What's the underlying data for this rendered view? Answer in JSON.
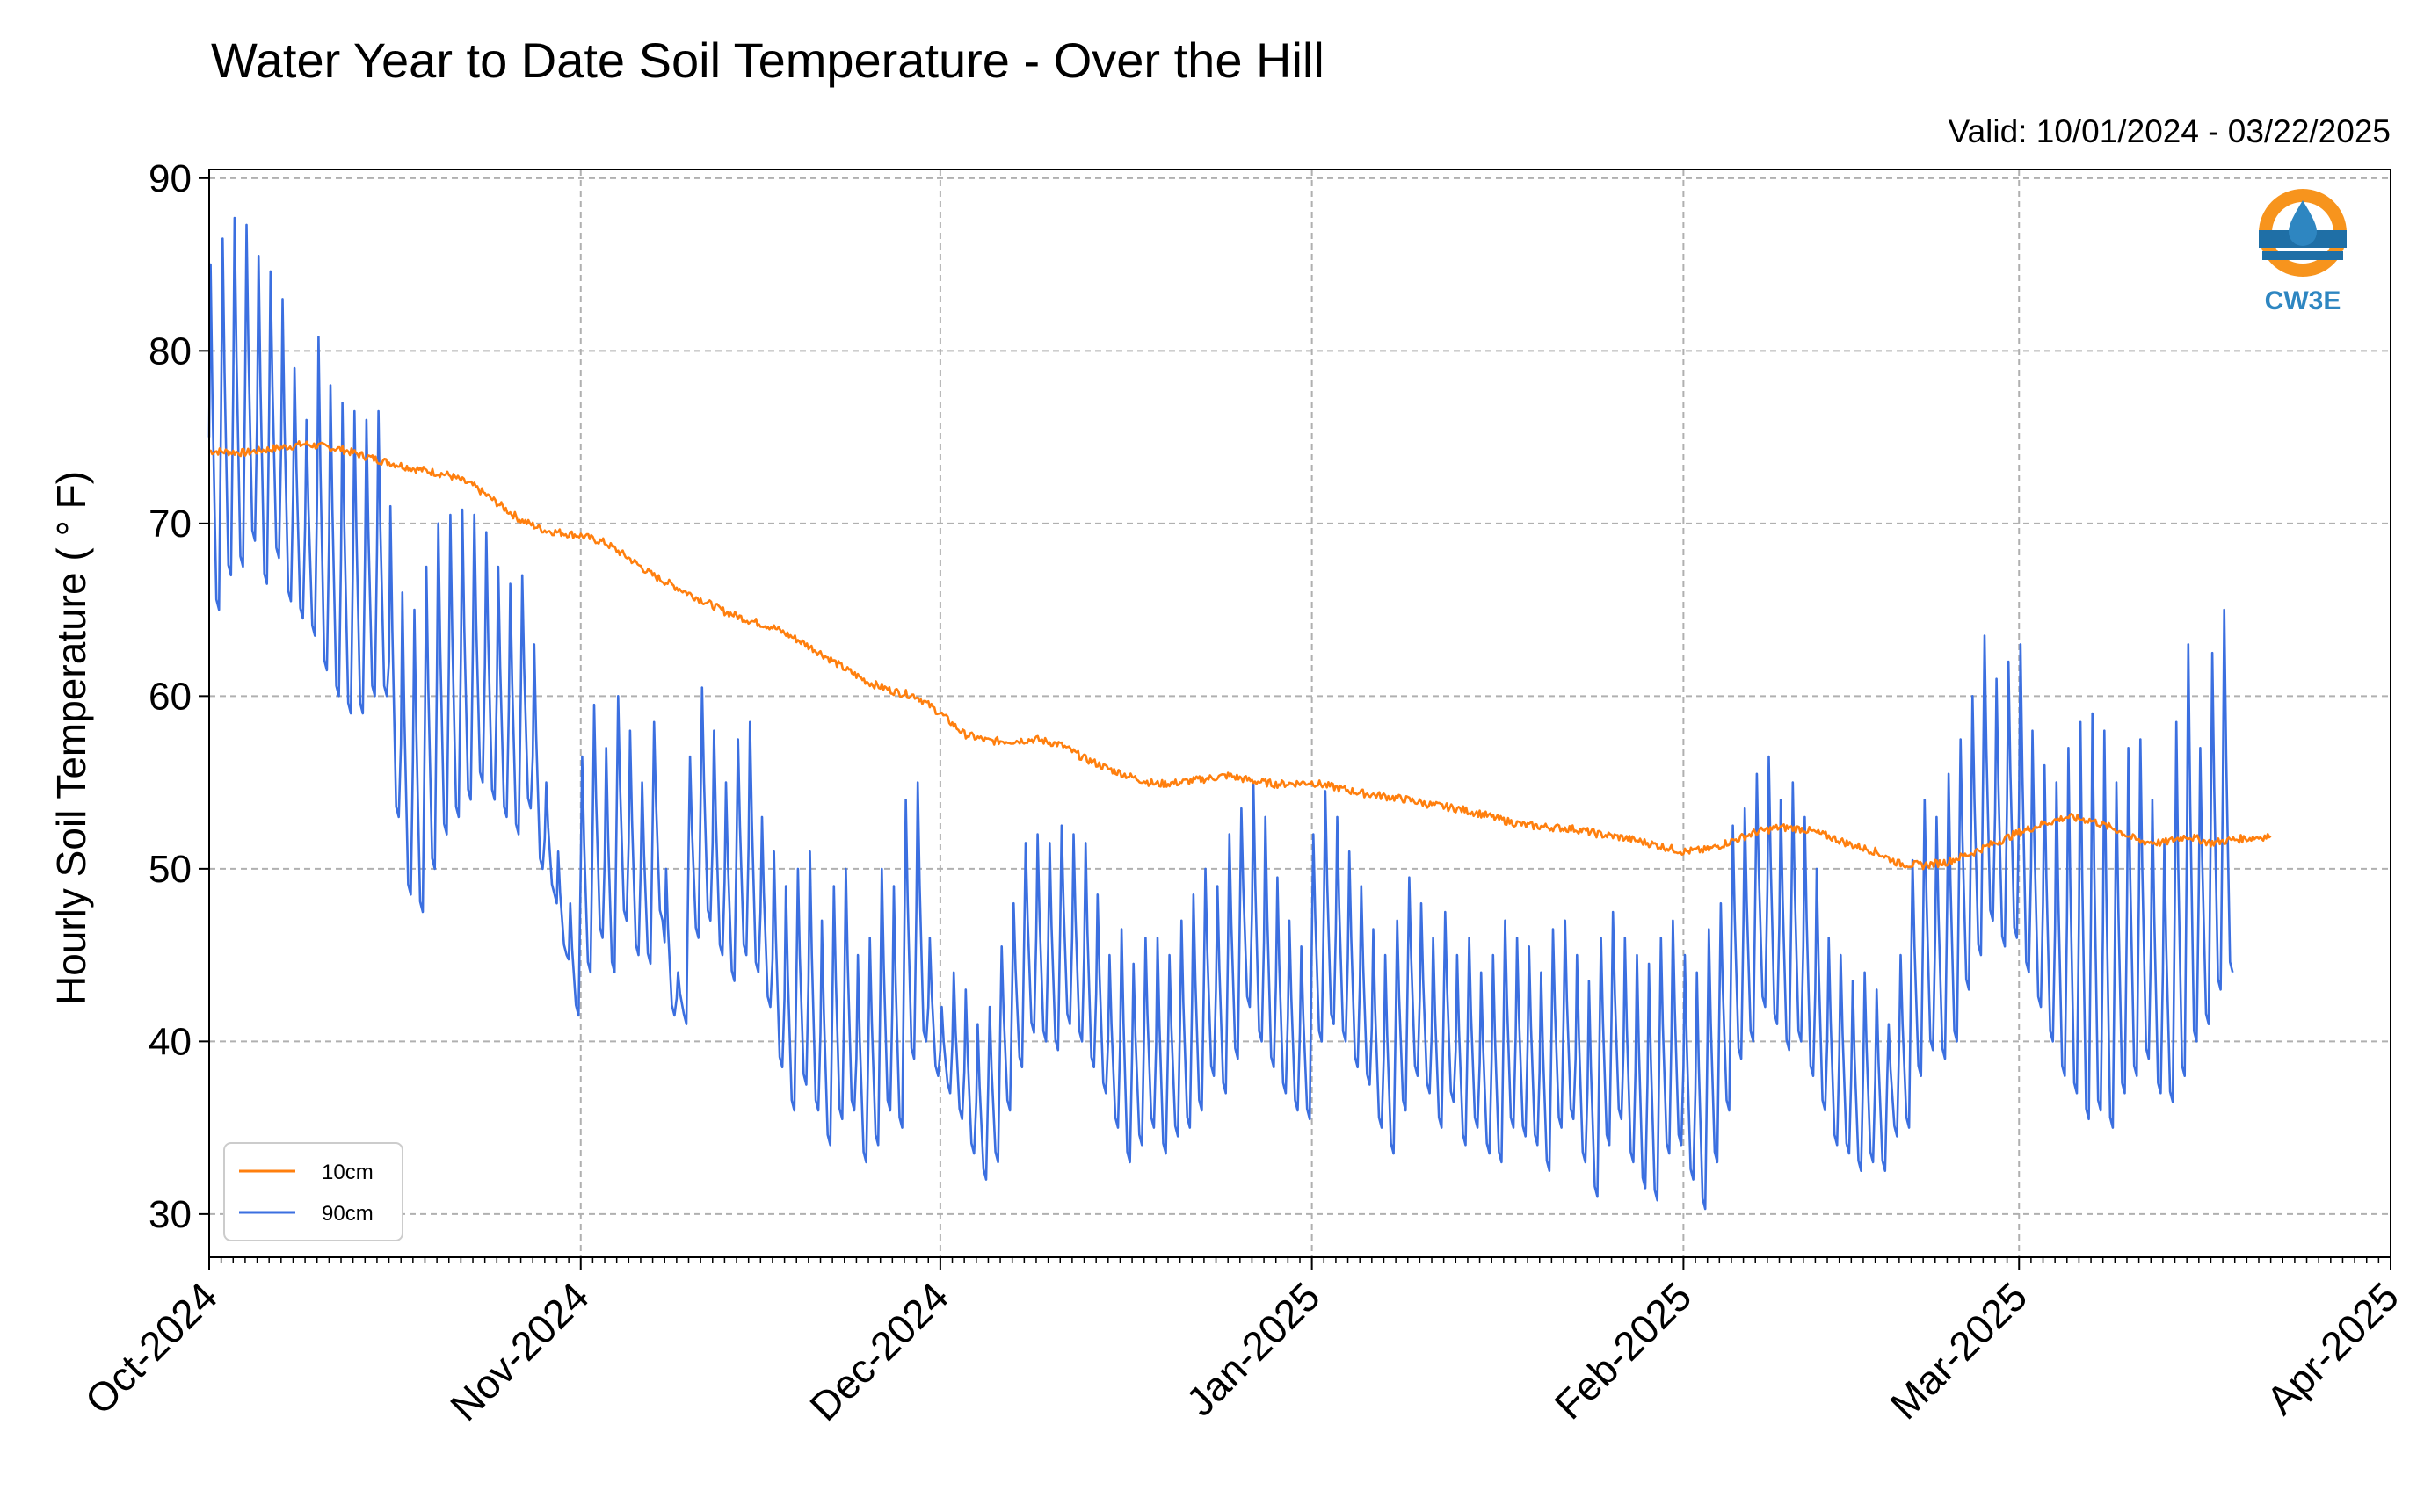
{
  "chart_data": {
    "type": "line",
    "title": "Water Year to Date Soil Temperature - Over the Hill",
    "subtitle": "Valid: 10/01/2024 - 03/22/2025",
    "ylabel": "Hourly Soil Temperature ( ° F)",
    "xlabel": "",
    "ylim": [
      27.5,
      90.5
    ],
    "yticks": [
      30,
      40,
      50,
      60,
      70,
      80,
      90
    ],
    "xlim": [
      "2024-10-01",
      "2025-04-01"
    ],
    "xticks": [
      {
        "date": "2024-10-01",
        "label": "Oct-2024"
      },
      {
        "date": "2024-11-01",
        "label": "Nov-2024"
      },
      {
        "date": "2024-12-01",
        "label": "Dec-2024"
      },
      {
        "date": "2025-01-01",
        "label": "Jan-2025"
      },
      {
        "date": "2025-02-01",
        "label": "Feb-2025"
      },
      {
        "date": "2025-03-01",
        "label": "Mar-2025"
      },
      {
        "date": "2025-04-01",
        "label": "Apr-2025"
      }
    ],
    "grid": true,
    "legend_position": "bottom-left",
    "logo_text": "CW3E",
    "series": [
      {
        "name": "10cm",
        "color": "#ff7f0e",
        "points": [
          [
            "2024-10-01",
            74.2
          ],
          [
            "2024-10-04",
            74.1
          ],
          [
            "2024-10-07",
            74.4
          ],
          [
            "2024-10-09",
            74.6
          ],
          [
            "2024-10-12",
            74.3
          ],
          [
            "2024-10-15",
            73.7
          ],
          [
            "2024-10-18",
            73.2
          ],
          [
            "2024-10-21",
            72.8
          ],
          [
            "2024-10-23",
            72.2
          ],
          [
            "2024-10-25",
            71.2
          ],
          [
            "2024-10-27",
            70.2
          ],
          [
            "2024-10-29",
            69.6
          ],
          [
            "2024-11-01",
            69.3
          ],
          [
            "2024-11-03",
            68.9
          ],
          [
            "2024-11-05",
            68.0
          ],
          [
            "2024-11-07",
            67.0
          ],
          [
            "2024-11-09",
            66.3
          ],
          [
            "2024-11-11",
            65.6
          ],
          [
            "2024-11-13",
            64.9
          ],
          [
            "2024-11-15",
            64.4
          ],
          [
            "2024-11-17",
            64.0
          ],
          [
            "2024-11-19",
            63.3
          ],
          [
            "2024-11-21",
            62.5
          ],
          [
            "2024-11-23",
            61.6
          ],
          [
            "2024-11-25",
            60.8
          ],
          [
            "2024-11-27",
            60.3
          ],
          [
            "2024-11-29",
            60.0
          ],
          [
            "2024-12-01",
            59.0
          ],
          [
            "2024-12-03",
            57.8
          ],
          [
            "2024-12-05",
            57.4
          ],
          [
            "2024-12-07",
            57.4
          ],
          [
            "2024-12-09",
            57.5
          ],
          [
            "2024-12-11",
            57.2
          ],
          [
            "2024-12-13",
            56.4
          ],
          [
            "2024-12-15",
            55.8
          ],
          [
            "2024-12-17",
            55.3
          ],
          [
            "2024-12-19",
            54.9
          ],
          [
            "2024-12-21",
            55.0
          ],
          [
            "2024-12-23",
            55.2
          ],
          [
            "2024-12-25",
            55.4
          ],
          [
            "2024-12-27",
            55.1
          ],
          [
            "2024-12-29",
            54.9
          ],
          [
            "2025-01-01",
            55.0
          ],
          [
            "2025-01-03",
            54.7
          ],
          [
            "2025-01-05",
            54.4
          ],
          [
            "2025-01-07",
            54.2
          ],
          [
            "2025-01-09",
            54.0
          ],
          [
            "2025-01-11",
            53.7
          ],
          [
            "2025-01-13",
            53.5
          ],
          [
            "2025-01-15",
            53.2
          ],
          [
            "2025-01-17",
            52.8
          ],
          [
            "2025-01-19",
            52.5
          ],
          [
            "2025-01-21",
            52.4
          ],
          [
            "2025-01-23",
            52.3
          ],
          [
            "2025-01-25",
            52.0
          ],
          [
            "2025-01-27",
            51.8
          ],
          [
            "2025-01-29",
            51.5
          ],
          [
            "2025-02-01",
            51.0
          ],
          [
            "2025-02-03",
            51.1
          ],
          [
            "2025-02-05",
            51.6
          ],
          [
            "2025-02-07",
            52.1
          ],
          [
            "2025-02-09",
            52.4
          ],
          [
            "2025-02-11",
            52.3
          ],
          [
            "2025-02-13",
            51.9
          ],
          [
            "2025-02-15",
            51.4
          ],
          [
            "2025-02-17",
            51.0
          ],
          [
            "2025-02-19",
            50.3
          ],
          [
            "2025-02-21",
            50.2
          ],
          [
            "2025-02-23",
            50.4
          ],
          [
            "2025-02-25",
            50.9
          ],
          [
            "2025-02-27",
            51.5
          ],
          [
            "2025-03-01",
            52.1
          ],
          [
            "2025-03-03",
            52.6
          ],
          [
            "2025-03-05",
            53.0
          ],
          [
            "2025-03-07",
            52.8
          ],
          [
            "2025-03-09",
            52.3
          ],
          [
            "2025-03-11",
            51.6
          ],
          [
            "2025-03-13",
            51.5
          ],
          [
            "2025-03-15",
            51.9
          ],
          [
            "2025-03-17",
            51.5
          ],
          [
            "2025-03-19",
            51.7
          ],
          [
            "2025-03-22",
            51.9
          ]
        ]
      },
      {
        "name": "90cm",
        "color": "#3b6fe0",
        "daily_extremes": [
          [
            85.0,
            65.0
          ],
          [
            86.5,
            67.0
          ],
          [
            87.7,
            67.5
          ],
          [
            87.3,
            69.0
          ],
          [
            85.5,
            66.5
          ],
          [
            84.6,
            68.0
          ],
          [
            83.0,
            65.5
          ],
          [
            79.0,
            64.5
          ],
          [
            76.0,
            63.5
          ],
          [
            80.8,
            61.5
          ],
          [
            78.0,
            60.0
          ],
          [
            77.0,
            59.0
          ],
          [
            76.5,
            59.0
          ],
          [
            76.0,
            60.0
          ],
          [
            76.5,
            60.0
          ],
          [
            71.0,
            53.0
          ],
          [
            66.0,
            48.5
          ],
          [
            65.0,
            47.5
          ],
          [
            67.5,
            50.0
          ],
          [
            70.0,
            52.0
          ],
          [
            70.5,
            53.0
          ],
          [
            70.8,
            54.0
          ],
          [
            70.5,
            55.0
          ],
          [
            69.5,
            54.0
          ],
          [
            67.5,
            53.0
          ],
          [
            66.5,
            52.0
          ],
          [
            67.0,
            53.5
          ],
          [
            63.0,
            50.0
          ],
          [
            55.0,
            48.5
          ],
          [
            51.0,
            45.0
          ],
          [
            48.0,
            41.5
          ],
          [
            56.5,
            44.0
          ],
          [
            59.5,
            46.0
          ],
          [
            57.0,
            44.0
          ],
          [
            60.0,
            47.0
          ],
          [
            58.0,
            45.0
          ],
          [
            55.0,
            44.5
          ],
          [
            58.5,
            47.0
          ],
          [
            50.0,
            41.5
          ],
          [
            44.0,
            41.0
          ],
          [
            56.5,
            46.0
          ],
          [
            60.5,
            47.0
          ],
          [
            58.0,
            45.0
          ],
          [
            55.0,
            43.5
          ],
          [
            57.5,
            45.0
          ],
          [
            58.5,
            44.0
          ],
          [
            53.0,
            42.0
          ],
          [
            51.0,
            38.5
          ],
          [
            49.0,
            36.0
          ],
          [
            50.0,
            37.5
          ],
          [
            51.0,
            36.0
          ],
          [
            47.0,
            34.0
          ],
          [
            49.0,
            35.5
          ],
          [
            50.0,
            36.0
          ],
          [
            45.0,
            33.0
          ],
          [
            46.0,
            34.0
          ],
          [
            50.0,
            36.0
          ],
          [
            49.0,
            35.0
          ],
          [
            54.0,
            39.0
          ],
          [
            55.0,
            40.0
          ],
          [
            46.0,
            38.0
          ],
          [
            42.0,
            37.0
          ],
          [
            44.0,
            35.5
          ],
          [
            43.0,
            33.5
          ],
          [
            41.0,
            32.0
          ],
          [
            42.0,
            33.0
          ],
          [
            45.5,
            36.0
          ],
          [
            48.0,
            38.5
          ],
          [
            51.5,
            40.5
          ],
          [
            52.0,
            40.0
          ],
          [
            51.5,
            39.5
          ],
          [
            52.5,
            41.0
          ],
          [
            52.0,
            40.0
          ],
          [
            51.5,
            38.5
          ],
          [
            48.5,
            37.0
          ],
          [
            45.0,
            35.0
          ],
          [
            46.5,
            33.0
          ],
          [
            44.5,
            34.0
          ],
          [
            46.0,
            35.0
          ],
          [
            46.0,
            33.5
          ],
          [
            45.0,
            34.5
          ],
          [
            47.0,
            35.0
          ],
          [
            48.5,
            36.0
          ],
          [
            50.0,
            38.0
          ],
          [
            49.0,
            37.0
          ],
          [
            52.0,
            39.0
          ],
          [
            53.5,
            42.0
          ],
          [
            55.0,
            40.0
          ],
          [
            53.0,
            38.5
          ],
          [
            49.5,
            37.0
          ],
          [
            47.0,
            36.0
          ],
          [
            45.5,
            35.5
          ],
          [
            52.0,
            40.0
          ],
          [
            54.5,
            41.0
          ],
          [
            53.0,
            40.0
          ],
          [
            51.0,
            38.5
          ],
          [
            49.0,
            37.5
          ],
          [
            46.5,
            35.0
          ],
          [
            45.0,
            33.5
          ],
          [
            47.0,
            36.0
          ],
          [
            49.5,
            38.0
          ],
          [
            48.0,
            37.0
          ],
          [
            46.0,
            35.0
          ],
          [
            47.5,
            36.5
          ],
          [
            45.0,
            34.0
          ],
          [
            46.0,
            35.0
          ],
          [
            44.0,
            33.5
          ],
          [
            45.0,
            33.0
          ],
          [
            47.0,
            35.0
          ],
          [
            46.0,
            34.5
          ],
          [
            45.5,
            34.0
          ],
          [
            44.0,
            32.5
          ],
          [
            46.5,
            35.0
          ],
          [
            47.0,
            35.5
          ],
          [
            45.0,
            33.0
          ],
          [
            43.5,
            31.0
          ],
          [
            46.0,
            34.0
          ],
          [
            47.5,
            35.5
          ],
          [
            46.0,
            33.0
          ],
          [
            45.0,
            31.5
          ],
          [
            44.5,
            30.8
          ],
          [
            46.0,
            33.5
          ],
          [
            47.0,
            34.0
          ],
          [
            45.0,
            32.0
          ],
          [
            44.0,
            30.3
          ],
          [
            46.5,
            33.0
          ],
          [
            48.0,
            36.0
          ],
          [
            52.5,
            39.0
          ],
          [
            53.5,
            40.0
          ],
          [
            55.5,
            42.0
          ],
          [
            56.5,
            41.0
          ],
          [
            54.0,
            39.5
          ],
          [
            55.0,
            40.0
          ],
          [
            53.0,
            38.0
          ],
          [
            50.0,
            36.0
          ],
          [
            46.0,
            34.0
          ],
          [
            45.0,
            33.5
          ],
          [
            43.5,
            32.5
          ],
          [
            44.0,
            33.0
          ],
          [
            43.0,
            32.5
          ],
          [
            41.0,
            34.5
          ],
          [
            45.0,
            35.0
          ],
          [
            50.5,
            38.0
          ],
          [
            54.0,
            39.5
          ],
          [
            53.0,
            39.0
          ],
          [
            55.5,
            40.0
          ],
          [
            57.5,
            43.0
          ],
          [
            60.0,
            45.0
          ],
          [
            63.5,
            47.0
          ],
          [
            61.0,
            45.5
          ],
          [
            62.0,
            46.0
          ],
          [
            63.0,
            44.0
          ],
          [
            58.0,
            42.0
          ],
          [
            56.0,
            40.0
          ],
          [
            55.0,
            38.0
          ],
          [
            57.0,
            37.0
          ],
          [
            58.5,
            35.5
          ],
          [
            59.0,
            36.0
          ],
          [
            58.0,
            35.0
          ],
          [
            55.0,
            37.0
          ],
          [
            57.0,
            38.0
          ],
          [
            57.5,
            39.0
          ],
          [
            54.0,
            37.0
          ],
          [
            51.5,
            36.5
          ],
          [
            58.5,
            38.0
          ],
          [
            63.0,
            40.0
          ],
          [
            57.0,
            41.0
          ],
          [
            62.5,
            43.0
          ],
          [
            65.0,
            44.0
          ]
        ]
      }
    ]
  }
}
